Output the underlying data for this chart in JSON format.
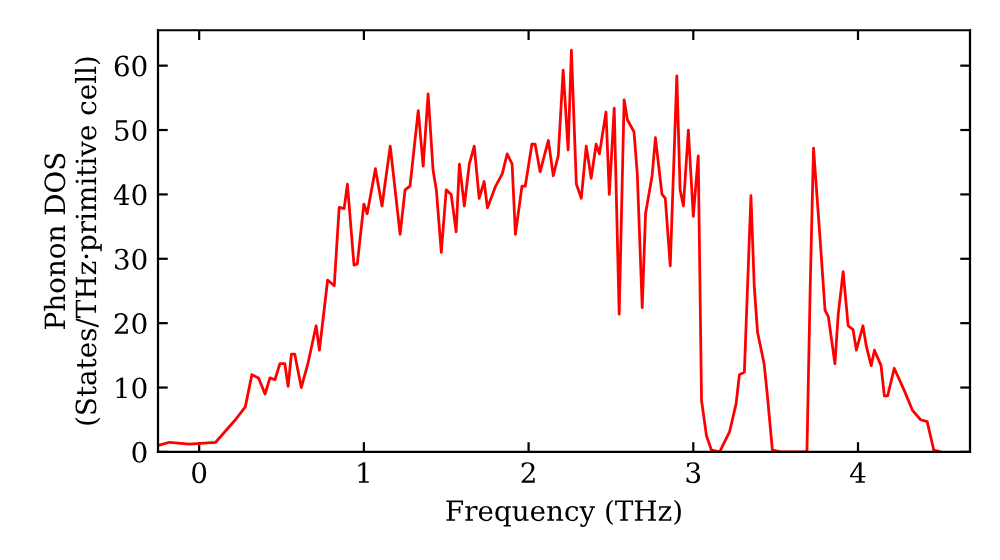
{
  "chart_data": {
    "type": "line",
    "xlabel": "Frequency (THz)",
    "ylabel": "Phonon DOS\n(States/THz·primitive cell)",
    "xlim": [
      -0.25,
      4.68
    ],
    "ylim": [
      0,
      65.5
    ],
    "xticks": [
      0,
      1,
      2,
      3,
      4
    ],
    "yticks": [
      0,
      10,
      20,
      30,
      40,
      50,
      60
    ],
    "grid": false,
    "marker": "none",
    "line_style": "solid",
    "series": [
      {
        "color": "#ff0000",
        "x": [
          -0.25,
          -0.18,
          -0.06,
          0.1,
          0.22,
          0.28,
          0.32,
          0.36,
          0.4,
          0.43,
          0.46,
          0.49,
          0.52,
          0.54,
          0.56,
          0.58,
          0.62,
          0.66,
          0.71,
          0.73,
          0.78,
          0.82,
          0.85,
          0.88,
          0.9,
          0.94,
          0.96,
          1.0,
          1.02,
          1.07,
          1.11,
          1.16,
          1.22,
          1.25,
          1.28,
          1.33,
          1.36,
          1.39,
          1.42,
          1.44,
          1.47,
          1.5,
          1.53,
          1.56,
          1.58,
          1.61,
          1.64,
          1.67,
          1.7,
          1.73,
          1.75,
          1.8,
          1.84,
          1.87,
          1.9,
          1.92,
          1.96,
          1.98,
          2.02,
          2.04,
          2.07,
          2.12,
          2.15,
          2.18,
          2.21,
          2.24,
          2.26,
          2.29,
          2.32,
          2.35,
          2.38,
          2.41,
          2.43,
          2.47,
          2.49,
          2.52,
          2.55,
          2.58,
          2.6,
          2.64,
          2.66,
          2.69,
          2.71,
          2.75,
          2.77,
          2.81,
          2.83,
          2.86,
          2.9,
          2.92,
          2.94,
          2.97,
          3.0,
          3.03,
          3.05,
          3.08,
          3.11,
          3.16,
          3.22,
          3.26,
          3.28,
          3.31,
          3.35,
          3.37,
          3.39,
          3.43,
          3.45,
          3.48,
          3.53,
          3.69,
          3.71,
          3.73,
          3.77,
          3.8,
          3.82,
          3.86,
          3.88,
          3.91,
          3.94,
          3.97,
          3.99,
          4.03,
          4.05,
          4.08,
          4.1,
          4.14,
          4.16,
          4.18,
          4.22,
          4.28,
          4.33,
          4.38,
          4.42,
          4.46,
          4.5
        ],
        "values": [
          1.0,
          1.5,
          1.2,
          1.5,
          5,
          7,
          12,
          11.5,
          9,
          11.5,
          11.2,
          13.7,
          13.7,
          10.2,
          15.2,
          15.2,
          10,
          13.7,
          19.6,
          15.8,
          26.7,
          25.8,
          38,
          37.8,
          41.6,
          29,
          29.2,
          38.5,
          37,
          44,
          38.2,
          47.5,
          33.8,
          40.7,
          41.3,
          53,
          44.4,
          55.6,
          43.8,
          40.7,
          31,
          40.7,
          40,
          34.2,
          44.7,
          38.2,
          44.7,
          47.5,
          39.4,
          42,
          37.9,
          41.3,
          43.2,
          46.3,
          44.7,
          33.8,
          41.3,
          41.3,
          47.8,
          47.8,
          43.5,
          48.4,
          42.9,
          46,
          59.3,
          46.9,
          62.4,
          41.6,
          39.4,
          47.5,
          42.5,
          47.8,
          46.3,
          52.8,
          40,
          53.4,
          21.4,
          54.7,
          51.6,
          49.7,
          43.2,
          22.4,
          37,
          42.9,
          48.8,
          40,
          39.4,
          28.9,
          58.4,
          40.7,
          38.2,
          50,
          36.6,
          46,
          8,
          2.5,
          0.3,
          0,
          3.1,
          7.5,
          12,
          12.4,
          39.8,
          25.8,
          18.6,
          13.7,
          8.7,
          0.3,
          0,
          0,
          25.8,
          47.2,
          33,
          22,
          21,
          13.7,
          21.4,
          28,
          19.6,
          19,
          15.8,
          19.6,
          16.5,
          13.4,
          15.8,
          13.4,
          8.7,
          8.7,
          13,
          9.6,
          6.5,
          5,
          4.7,
          0.3,
          0
        ]
      }
    ]
  }
}
